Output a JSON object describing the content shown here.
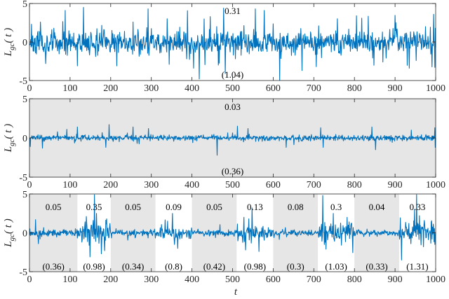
{
  "chart_data": [
    {
      "type": "line",
      "title": "",
      "xlabel": "",
      "ylabel": "L_gc(t)",
      "xlim": [
        0,
        1000
      ],
      "ylim": [
        -5,
        5
      ],
      "xticks": [
        0,
        100,
        200,
        300,
        400,
        500,
        600,
        700,
        800,
        900,
        1000
      ],
      "yticks": [
        -5,
        0,
        5
      ],
      "background": "#ffffff",
      "shaded_regions": [],
      "series": [
        {
          "name": "L_gc(t)",
          "color": "#0072BD",
          "noise_scale": 1.0,
          "seed": 11,
          "spikes": [
            [
              5,
              2.3
            ],
            [
              27,
              2.6
            ],
            [
              40,
              -2.8
            ],
            [
              88,
              4.1
            ],
            [
              118,
              -3.1
            ],
            [
              133,
              4.5
            ],
            [
              215,
              -3.1
            ],
            [
              255,
              2.6
            ],
            [
              292,
              4.3
            ],
            [
              344,
              -2.9
            ],
            [
              404,
              -3.4
            ],
            [
              418,
              -4.8
            ],
            [
              430,
              3.0
            ],
            [
              445,
              3.3
            ],
            [
              465,
              -3.0
            ],
            [
              478,
              4.4
            ],
            [
              482,
              -4.1
            ],
            [
              556,
              4.3
            ],
            [
              578,
              4.1
            ],
            [
              616,
              -5.0
            ],
            [
              671,
              -3.7
            ],
            [
              706,
              -3.2
            ],
            [
              805,
              3.4
            ],
            [
              818,
              3.1
            ],
            [
              870,
              -2.6
            ],
            [
              902,
              2.5
            ],
            [
              935,
              -3.4
            ],
            [
              975,
              2.0
            ],
            [
              995,
              3.6
            ],
            [
              998,
              -3.3
            ]
          ]
        }
      ],
      "annotations": [
        {
          "x": 500,
          "y": 4.1,
          "text": "0.31"
        },
        {
          "x": 500,
          "y": -4.2,
          "text": "(1.04)"
        }
      ]
    },
    {
      "type": "line",
      "title": "",
      "xlabel": "",
      "ylabel": "L_gc(t)",
      "xlim": [
        0,
        1000
      ],
      "ylim": [
        -5,
        5
      ],
      "xticks": [
        0,
        100,
        200,
        300,
        400,
        500,
        600,
        700,
        800,
        900,
        1000
      ],
      "yticks": [
        -5,
        0,
        5
      ],
      "background": "#e6e6e6",
      "shaded_regions": [
        [
          0,
          1000
        ]
      ],
      "series": [
        {
          "name": "L_gc(t)",
          "color": "#0072BD",
          "noise_scale": 0.22,
          "seed": 23,
          "spikes": [
            [
              2,
              -1.1
            ],
            [
              32,
              -1.3
            ],
            [
              92,
              1.1
            ],
            [
              118,
              1.4
            ],
            [
              188,
              -1.2
            ],
            [
              196,
              1.7
            ],
            [
              255,
              1.4
            ],
            [
              293,
              1.2
            ],
            [
              462,
              -2.2
            ],
            [
              512,
              1.5
            ],
            [
              538,
              1.2
            ],
            [
              632,
              -1.2
            ],
            [
              717,
              1.3
            ],
            [
              723,
              -1.2
            ],
            [
              843,
              1.4
            ],
            [
              852,
              -1.5
            ],
            [
              940,
              1.0
            ],
            [
              998,
              1.3
            ],
            [
              999,
              -1.2
            ]
          ]
        }
      ],
      "annotations": [
        {
          "x": 500,
          "y": 4.0,
          "text": "0.03"
        },
        {
          "x": 500,
          "y": -4.2,
          "text": "(0.36)"
        }
      ]
    },
    {
      "type": "line",
      "title": "",
      "xlabel": "t",
      "ylabel": "L_gc(t)",
      "xlim": [
        0,
        1000
      ],
      "ylim": [
        -5,
        5
      ],
      "xticks": [
        0,
        100,
        200,
        300,
        400,
        500,
        600,
        700,
        800,
        900,
        1000
      ],
      "yticks": [
        -5,
        0,
        5
      ],
      "background": "#ffffff",
      "shaded_regions": [
        [
          0,
          118
        ],
        [
          200,
          310
        ],
        [
          400,
          510
        ],
        [
          600,
          710
        ],
        [
          800,
          910
        ]
      ],
      "segments": [
        {
          "range": [
            0,
            118
          ],
          "noise_scale": 0.28,
          "top": "0.05",
          "bottom": "(0.36)"
        },
        {
          "range": [
            118,
            200
          ],
          "noise_scale": 0.9,
          "top": "0.35",
          "bottom": "(0.98)"
        },
        {
          "range": [
            200,
            310
          ],
          "noise_scale": 0.28,
          "top": "0.05",
          "bottom": "(0.34)"
        },
        {
          "range": [
            310,
            400
          ],
          "noise_scale": 0.55,
          "top": "0.09",
          "bottom": "(0.8)"
        },
        {
          "range": [
            400,
            510
          ],
          "noise_scale": 0.28,
          "top": "0.05",
          "bottom": "(0.42)"
        },
        {
          "range": [
            510,
            600
          ],
          "noise_scale": 0.6,
          "top": "0.13",
          "bottom": "(0.98)"
        },
        {
          "range": [
            600,
            710
          ],
          "noise_scale": 0.28,
          "top": "0.08",
          "bottom": "(0.3)"
        },
        {
          "range": [
            710,
            800
          ],
          "noise_scale": 0.8,
          "top": "0.3",
          "bottom": "(1.03)"
        },
        {
          "range": [
            800,
            910
          ],
          "noise_scale": 0.25,
          "top": "0.04",
          "bottom": "(0.33)"
        },
        {
          "range": [
            910,
            1000
          ],
          "noise_scale": 0.85,
          "top": "0.33",
          "bottom": "(1.31)"
        }
      ],
      "series": [
        {
          "name": "L_gc(t)",
          "color": "#0072BD",
          "seed": 37,
          "spikes": [
            [
              15,
              1.7
            ],
            [
              22,
              -1.4
            ],
            [
              140,
              2.1
            ],
            [
              147,
              -1.6
            ],
            [
              160,
              4.9
            ],
            [
              165,
              2.5
            ],
            [
              177,
              -2.7
            ],
            [
              185,
              -2.3
            ],
            [
              190,
              1.8
            ],
            [
              340,
              1.5
            ],
            [
              352,
              2.5
            ],
            [
              357,
              -1.5
            ],
            [
              365,
              -2.0
            ],
            [
              528,
              2.0
            ],
            [
              532,
              -2.2
            ],
            [
              540,
              1.8
            ],
            [
              548,
              3.2
            ],
            [
              565,
              -2.4
            ],
            [
              722,
              4.8
            ],
            [
              730,
              -2.1
            ],
            [
              748,
              2.5
            ],
            [
              768,
              -1.6
            ],
            [
              782,
              2.0
            ],
            [
              948,
              3.0
            ],
            [
              953,
              4.9
            ],
            [
              960,
              2.2
            ],
            [
              970,
              -1.8
            ],
            [
              998,
              -1.5
            ]
          ]
        }
      ],
      "annotations": []
    }
  ],
  "axes_labels": {
    "ylabel_main": "L",
    "ylabel_sub": "gc",
    "ylabel_arg": "( t )",
    "xlabel": "t"
  }
}
